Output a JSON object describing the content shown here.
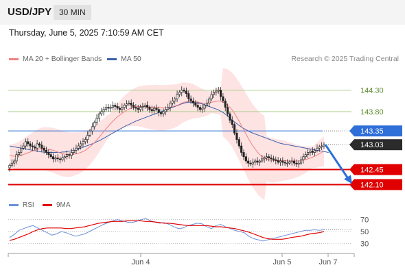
{
  "header": {
    "symbol": "USD/JPY",
    "interval": "30 MIN"
  },
  "datetime": "Thursday, June 5, 2025 7:10:59 AM CET",
  "legend": {
    "ma20_label": "MA 20 + Bollinger Bands",
    "ma50_label": "MA 50",
    "credit": "Research © 2025 Trading Central"
  },
  "rsi_legend": {
    "rsi_label": "RSI",
    "ma_label": "9MA"
  },
  "colors": {
    "up_candle": "#ffffff",
    "down_candle": "#222222",
    "ma20": "#f08080",
    "ma50": "#3b5fa8",
    "bollinger_fill": "#fdd9d9",
    "support": "#e00000",
    "pivot": "#2e6fd8",
    "target_arrow": "#2e6fd8",
    "resistance": "#a8cc88",
    "rsi": "#6a8fd8",
    "rsi_ma": "#e00000"
  },
  "chart_data": [
    {
      "type": "candlestick",
      "title": "USD/JPY 30 MIN",
      "x_ticks": [
        "Jun 4",
        "Jun 5",
        "Jun 7"
      ],
      "ylim": [
        141.9,
        144.55
      ],
      "levels": [
        {
          "value": 144.3,
          "label": "144.30",
          "kind": "resistance"
        },
        {
          "value": 143.8,
          "label": "143.80",
          "kind": "resistance"
        },
        {
          "value": 143.35,
          "label": "143.35",
          "kind": "pivot"
        },
        {
          "value": 143.03,
          "label": "143.03",
          "kind": "last"
        },
        {
          "value": 142.45,
          "label": "142.45",
          "kind": "support"
        },
        {
          "value": 142.1,
          "label": "142.10",
          "kind": "support"
        }
      ],
      "close_series": [
        142.55,
        142.6,
        142.65,
        142.8,
        142.85,
        142.95,
        143.0,
        143.1,
        143.05,
        143.0,
        142.98,
        142.95,
        143.05,
        143.02,
        142.95,
        142.9,
        142.85,
        142.8,
        142.75,
        142.7,
        142.72,
        142.7,
        142.68,
        142.72,
        142.75,
        142.8,
        142.78,
        142.85,
        142.9,
        142.95,
        143.0,
        143.05,
        143.1,
        143.15,
        143.25,
        143.35,
        143.45,
        143.55,
        143.65,
        143.75,
        143.8,
        143.85,
        143.9,
        143.88,
        143.9,
        143.95,
        143.92,
        143.88,
        143.85,
        143.9,
        143.95,
        143.98,
        144.0,
        143.95,
        143.9,
        143.88,
        143.85,
        143.9,
        143.92,
        143.95,
        143.9,
        143.85,
        143.82,
        143.88,
        143.85,
        143.78,
        143.75,
        143.8,
        143.85,
        143.9,
        144.0,
        144.05,
        144.1,
        144.2,
        144.25,
        144.3,
        144.28,
        144.22,
        144.1,
        144.05,
        144.0,
        143.95,
        143.9,
        143.85,
        143.88,
        143.95,
        144.0,
        144.1,
        144.2,
        144.25,
        144.28,
        144.3,
        144.15,
        144.05,
        143.9,
        143.75,
        143.6,
        143.5,
        143.3,
        143.15,
        143.0,
        142.85,
        142.75,
        142.65,
        142.6,
        142.58,
        142.62,
        142.65,
        142.62,
        142.65,
        142.7,
        142.72,
        142.75,
        142.72,
        142.7,
        142.68,
        142.66,
        142.62,
        142.65,
        142.62,
        142.6,
        142.6,
        142.63,
        142.65,
        142.6,
        142.58,
        142.6,
        142.68,
        142.75,
        142.8,
        142.85,
        142.88,
        142.85,
        142.9,
        142.95,
        142.98,
        143.0,
        143.03
      ],
      "ma20_series": [
        142.78,
        142.77,
        142.76,
        142.76,
        142.77,
        142.78,
        142.8,
        142.82,
        142.84,
        142.86,
        142.88,
        142.9,
        142.92,
        142.93,
        142.94,
        142.94,
        142.93,
        142.92,
        142.91,
        142.9,
        142.88,
        142.86,
        142.84,
        142.82,
        142.81,
        142.8,
        142.8,
        142.8,
        142.81,
        142.82,
        142.83,
        142.85,
        142.87,
        142.9,
        142.94,
        142.98,
        143.03,
        143.08,
        143.14,
        143.2,
        143.27,
        143.33,
        143.4,
        143.46,
        143.52,
        143.58,
        143.63,
        143.68,
        143.72,
        143.76,
        143.8,
        143.83,
        143.86,
        143.88,
        143.9,
        143.91,
        143.92,
        143.92,
        143.92,
        143.92,
        143.91,
        143.91,
        143.9,
        143.9,
        143.9,
        143.89,
        143.89,
        143.89,
        143.89,
        143.9,
        143.91,
        143.92,
        143.93,
        143.95,
        143.97,
        144.0,
        144.02,
        144.03,
        144.04,
        144.04,
        144.04,
        144.03,
        144.02,
        144.01,
        144.0,
        144.0,
        144.0,
        144.01,
        144.02,
        144.03,
        144.04,
        144.05,
        144.04,
        144.02,
        143.99,
        143.95,
        143.9,
        143.84,
        143.76,
        143.67,
        143.58,
        143.48,
        143.38,
        143.28,
        143.18,
        143.09,
        143.0,
        142.93,
        142.86,
        142.8,
        142.76,
        142.72,
        142.7,
        142.68,
        142.67,
        142.66,
        142.66,
        142.66,
        142.66,
        142.66,
        142.66,
        142.65,
        142.65,
        142.65,
        142.65,
        142.65,
        142.65,
        142.66,
        142.67,
        142.68,
        142.7,
        142.72,
        142.74,
        142.76,
        142.79,
        142.82,
        142.85,
        142.88
      ],
      "ma50_series": [
        143.0,
        142.99,
        142.98,
        142.97,
        142.96,
        142.95,
        142.94,
        142.93,
        142.92,
        142.91,
        142.9,
        142.89,
        142.88,
        142.87,
        142.86,
        142.86,
        142.85,
        142.85,
        142.85,
        142.85,
        142.85,
        142.85,
        142.85,
        142.86,
        142.86,
        142.87,
        142.88,
        142.89,
        142.9,
        142.91,
        142.93,
        142.95,
        142.97,
        142.99,
        143.01,
        143.03,
        143.05,
        143.07,
        143.1,
        143.12,
        143.15,
        143.18,
        143.21,
        143.24,
        143.27,
        143.3,
        143.33,
        143.36,
        143.39,
        143.42,
        143.45,
        143.48,
        143.5,
        143.53,
        143.55,
        143.58,
        143.6,
        143.62,
        143.64,
        143.66,
        143.68,
        143.7,
        143.72,
        143.74,
        143.76,
        143.78,
        143.8,
        143.82,
        143.84,
        143.86,
        143.88,
        143.9,
        143.92,
        143.94,
        143.96,
        143.98,
        144.0,
        144.01,
        144.02,
        144.02,
        144.02,
        144.01,
        144.0,
        143.99,
        143.98,
        143.96,
        143.94,
        143.92,
        143.9,
        143.88,
        143.86,
        143.84,
        143.81,
        143.78,
        143.74,
        143.7,
        143.65,
        143.6,
        143.56,
        143.52,
        143.48,
        143.44,
        143.41,
        143.38,
        143.35,
        143.32,
        143.3,
        143.28,
        143.26,
        143.24,
        143.22,
        143.2,
        143.18,
        143.16,
        143.14,
        143.12,
        143.1,
        143.08,
        143.06,
        143.05,
        143.04,
        143.03,
        143.02,
        143.01,
        143.0,
        142.99,
        142.98,
        142.97,
        142.96,
        142.95,
        142.94,
        142.93,
        142.92,
        142.91,
        142.9,
        142.89,
        142.88,
        142.87,
        142.86,
        142.85
      ]
    },
    {
      "type": "line",
      "title": "RSI",
      "y_ticks": [
        "70",
        "50",
        "30"
      ],
      "ylim": [
        20,
        80
      ],
      "series": [
        {
          "name": "RSI",
          "values": [
            40,
            45,
            52,
            55,
            58,
            60,
            56,
            52,
            48,
            44,
            46,
            50,
            48,
            45,
            42,
            44,
            46,
            50,
            54,
            58,
            62,
            65,
            68,
            70,
            68,
            66,
            65,
            67,
            70,
            72,
            68,
            66,
            64,
            65,
            62,
            58,
            55,
            56,
            60,
            62,
            64,
            63,
            58,
            55,
            60,
            62,
            58,
            55,
            52,
            50,
            48,
            42,
            38,
            36,
            34,
            36,
            38,
            40,
            42,
            44,
            46,
            48,
            50,
            52,
            52,
            53,
            52,
            53
          ]
        },
        {
          "name": "9MA",
          "values": [
            35,
            37,
            40,
            43,
            46,
            50,
            53,
            55,
            56,
            56,
            56,
            56,
            55,
            55,
            56,
            57,
            58,
            60,
            62,
            64,
            65,
            66,
            67,
            67,
            67,
            68,
            68,
            68,
            68,
            67,
            67,
            66,
            65,
            64,
            64,
            63,
            62,
            61,
            60,
            60,
            60,
            60,
            60,
            59,
            58,
            58,
            57,
            56,
            55,
            53,
            51,
            49,
            46,
            43,
            40,
            38,
            37,
            37,
            37,
            38,
            40,
            41,
            42,
            44,
            46,
            47,
            48,
            50
          ]
        }
      ]
    }
  ]
}
